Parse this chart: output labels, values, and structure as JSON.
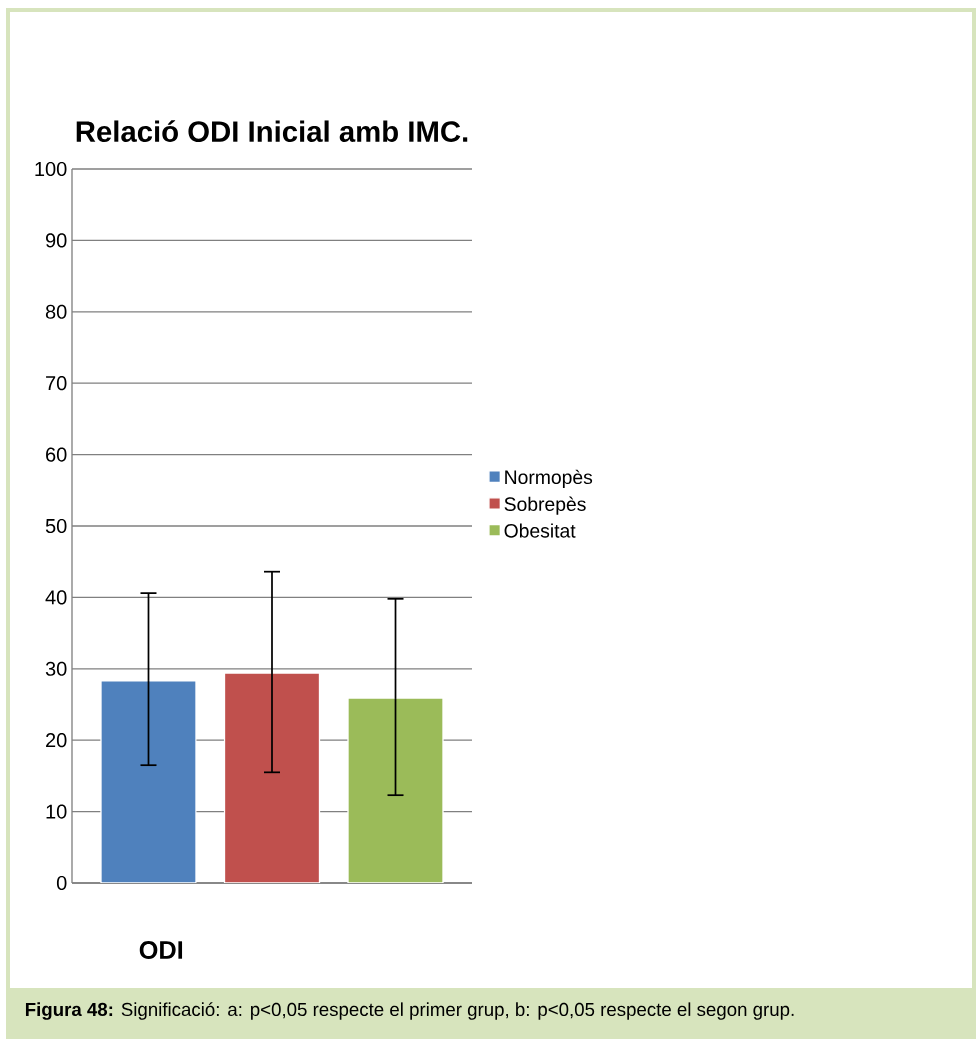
{
  "chart_data": {
    "type": "bar",
    "title": "Relació ODI Inicial amb IMC.",
    "xlabel": "ODI",
    "categories": [
      null
    ],
    "series": [
      {
        "name": "Normopès",
        "color": "#4f81bd",
        "values": [
          28.3
        ],
        "errors": [
          [
            16.5,
            40.6
          ]
        ]
      },
      {
        "name": "Sobrepès",
        "color": "#c0504d",
        "values": [
          29.4
        ],
        "errors": [
          [
            15.5,
            43.6
          ]
        ]
      },
      {
        "name": "Obesitat",
        "color": "#9bbb59",
        "values": [
          25.9
        ],
        "errors": [
          [
            12.3,
            39.8
          ]
        ]
      }
    ],
    "ylim": [
      0,
      100
    ],
    "yticks": [
      0,
      10,
      20,
      30,
      40,
      50,
      60,
      70,
      80,
      90,
      100
    ],
    "grid": "y",
    "legend": "right",
    "annotations": [
      "**Figura 48:** Significació: a: p<0,05 respecte el primer grup, b: p<0,05 respecte el segon grup."
    ]
  }
}
